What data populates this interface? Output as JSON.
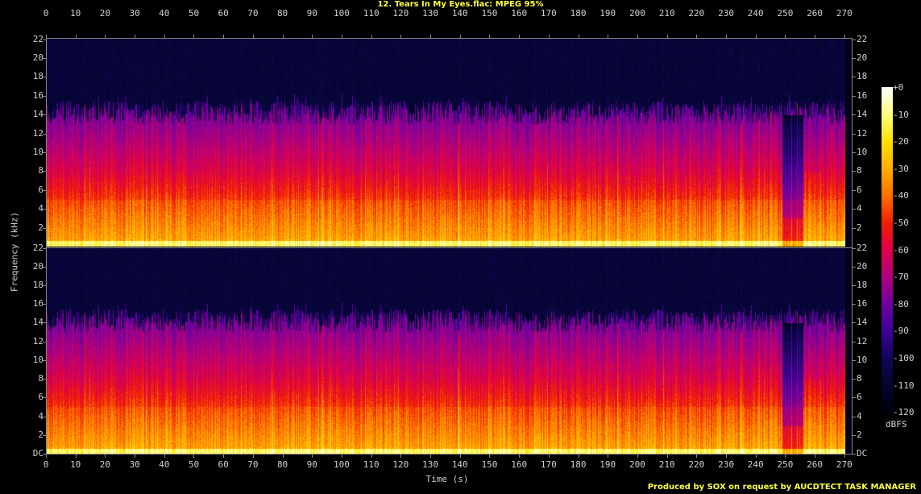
{
  "title": "12. Tears In My Eyes.flac: MPEG 95%",
  "footer": "Produced by SOX on request by AUCDTECT TASK MANAGER",
  "chart_data": {
    "type": "heatmap",
    "title": "12. Tears In My Eyes.flac: MPEG 95%",
    "xlabel": "Time (s)",
    "ylabel": "Frequency (kHz)",
    "channels": 2,
    "xlim": [
      0,
      272.5
    ],
    "ylim": [
      0,
      22.05
    ],
    "x_ticks": [
      0,
      10,
      20,
      30,
      40,
      50,
      60,
      70,
      80,
      90,
      100,
      110,
      120,
      130,
      140,
      150,
      160,
      170,
      180,
      190,
      200,
      210,
      220,
      230,
      240,
      250,
      260,
      270
    ],
    "y_ticks_top": [
      "22",
      "20",
      "18",
      "16",
      "14",
      "12",
      "10",
      "8",
      "6",
      "4",
      "2"
    ],
    "y_ticks_bottom": [
      "22",
      "20",
      "18",
      "16",
      "14",
      "12",
      "10",
      "8",
      "6",
      "4",
      "2",
      "DC"
    ],
    "y_tick_values": [
      22,
      20,
      18,
      16,
      14,
      12,
      10,
      8,
      6,
      4,
      2,
      0
    ],
    "lowpass_cutoff_khz": 15.5,
    "track_end_s": 270,
    "colorbar": {
      "label": "dBFS",
      "range": [
        -120,
        0
      ],
      "ticks": [
        "+0",
        "-10",
        "-20",
        "-30",
        "-40",
        "-50",
        "-60",
        "-70",
        "-80",
        "-90",
        "-100",
        "-110",
        "-120"
      ],
      "colors": [
        "#ffffff",
        "#ffff80",
        "#ffe000",
        "#ffb000",
        "#ff7000",
        "#f02000",
        "#e0004a",
        "#b00080",
        "#7000a0",
        "#40009a",
        "#10085a",
        "#050530",
        "#000010"
      ]
    }
  }
}
